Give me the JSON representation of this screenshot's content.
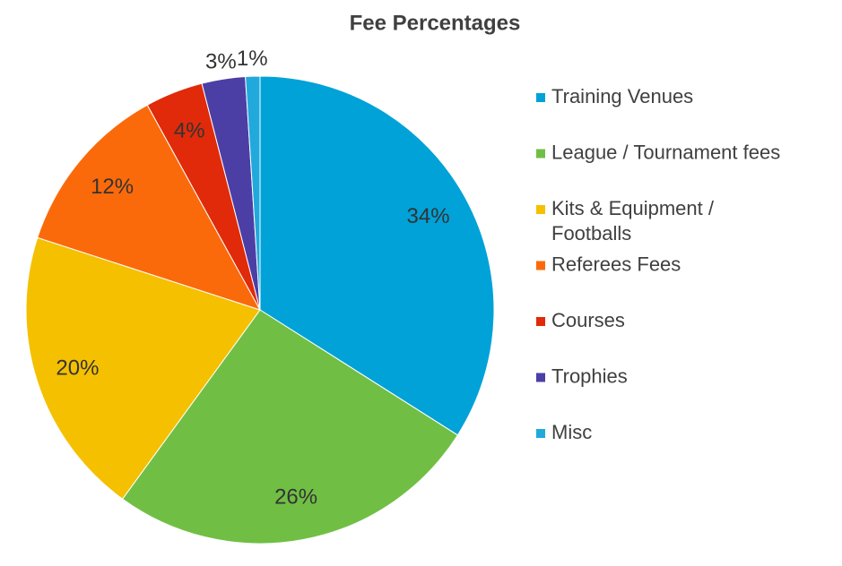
{
  "chart_data": {
    "type": "pie",
    "title": "Fee Percentages",
    "categories": [
      "Training Venues",
      "League / Tournament fees",
      "Kits & Equipment / Footballs",
      "Referees Fees",
      "Courses",
      "Trophies",
      "Misc"
    ],
    "values": [
      34,
      26,
      20,
      12,
      4,
      3,
      1
    ],
    "value_labels": [
      "34%",
      "26%",
      "20%",
      "12%",
      "4%",
      "3%",
      "1%"
    ],
    "colors": [
      "#00a2d8",
      "#70bf44",
      "#f5c000",
      "#fb6a0a",
      "#e02a0a",
      "#4b3fa6",
      "#21a9dc"
    ],
    "legend": "right"
  }
}
